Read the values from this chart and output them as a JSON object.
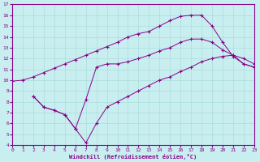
{
  "xlabel": "Windchill (Refroidissement éolien,°C)",
  "xlim": [
    0,
    23
  ],
  "ylim": [
    4,
    17
  ],
  "xticks": [
    0,
    1,
    2,
    3,
    4,
    5,
    6,
    7,
    8,
    9,
    10,
    11,
    12,
    13,
    14,
    15,
    16,
    17,
    18,
    19,
    20,
    21,
    22,
    23
  ],
  "yticks": [
    4,
    5,
    6,
    7,
    8,
    9,
    10,
    11,
    12,
    13,
    14,
    15,
    16,
    17
  ],
  "bg_color": "#c8eef0",
  "line_color": "#880088",
  "grid_color": "#aadddd",
  "line1_x": [
    0,
    1,
    2,
    3,
    4,
    5,
    6,
    7,
    8,
    9,
    10,
    11,
    12,
    13,
    14,
    15,
    16,
    17,
    18,
    19,
    20,
    21,
    22,
    23
  ],
  "line1_y": [
    9.9,
    10.0,
    10.3,
    10.7,
    11.1,
    11.5,
    11.9,
    12.3,
    12.7,
    13.1,
    13.5,
    14.0,
    14.3,
    14.5,
    15.0,
    15.5,
    15.9,
    16.0,
    16.0,
    15.0,
    13.5,
    12.2,
    11.5,
    11.2
  ],
  "line2_x": [
    2,
    3,
    4,
    5,
    6,
    7,
    8,
    9,
    10,
    11,
    12,
    13,
    14,
    15,
    16,
    17,
    18,
    19,
    20,
    21,
    22,
    23
  ],
  "line2_y": [
    8.5,
    7.5,
    7.2,
    6.8,
    5.5,
    8.2,
    11.2,
    11.5,
    11.5,
    11.7,
    12.0,
    12.3,
    12.7,
    13.0,
    13.5,
    13.8,
    13.8,
    13.5,
    12.8,
    12.3,
    12.0,
    11.5
  ],
  "line3_x": [
    2,
    3,
    4,
    5,
    6,
    7,
    8,
    9,
    10,
    11,
    12,
    13,
    14,
    15,
    16,
    17,
    18,
    19,
    20,
    21,
    22,
    23
  ],
  "line3_y": [
    8.5,
    7.5,
    7.2,
    6.8,
    5.5,
    4.2,
    6.0,
    7.5,
    8.0,
    8.5,
    9.0,
    9.5,
    10.0,
    10.3,
    10.8,
    11.2,
    11.7,
    12.0,
    12.2,
    12.3,
    11.5,
    11.2
  ]
}
